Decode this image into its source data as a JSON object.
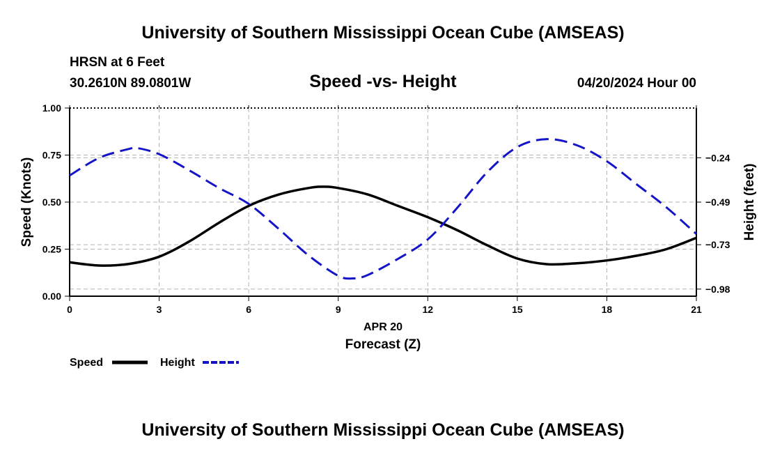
{
  "header": {
    "title": "University of Southern Mississippi Ocean Cube (AMSEAS)",
    "station": "HRSN at 6 Feet",
    "coords": "30.2610N  89.0801W",
    "chart_title": "Speed -vs- Height",
    "datetime": "04/20/2024 Hour 00"
  },
  "footer": {
    "title": "University of Southern Mississippi Ocean Cube (AMSEAS)"
  },
  "chart_data": {
    "type": "line",
    "title": "Speed -vs- Height",
    "xlabel": "Forecast (Z)",
    "xsublabel": "APR 20",
    "ylabel": "Speed (Knots)",
    "y2label": "Height (feet)",
    "xlim": [
      0,
      21
    ],
    "ylim": [
      0,
      1
    ],
    "y2lim": [
      -1.02,
      0.04
    ],
    "xticks": [
      "0",
      "3",
      "6",
      "9",
      "12",
      "15",
      "18",
      "21"
    ],
    "yticks": [
      "0.00",
      "0.25",
      "0.50",
      "0.75",
      "1.00"
    ],
    "y2ticks": [
      "-0.24",
      "-0.49",
      "-0.73",
      "-0.98"
    ],
    "grid": true,
    "legend_position": "bottom-left",
    "series": [
      {
        "name": "Speed",
        "axis": "left",
        "color": "#000000",
        "style": "solid",
        "x": [
          0,
          1,
          2,
          3,
          4,
          5,
          6,
          7,
          8,
          8.5,
          9,
          10,
          11,
          12,
          13,
          14,
          15,
          16,
          17,
          18,
          19,
          20,
          21
        ],
        "values": [
          0.18,
          0.163,
          0.172,
          0.21,
          0.29,
          0.39,
          0.48,
          0.54,
          0.575,
          0.582,
          0.575,
          0.54,
          0.48,
          0.42,
          0.35,
          0.27,
          0.2,
          0.17,
          0.175,
          0.19,
          0.215,
          0.25,
          0.31
        ]
      },
      {
        "name": "Height",
        "axis": "right",
        "color": "#1414c8",
        "style": "dashed",
        "x": [
          0,
          1,
          2,
          2.25,
          3,
          4,
          5,
          6,
          7,
          8,
          9,
          9.5,
          10,
          11,
          12,
          13,
          14,
          15,
          16,
          17,
          18,
          19,
          20,
          21
        ],
        "values": [
          -0.34,
          -0.24,
          -0.19,
          -0.185,
          -0.22,
          -0.31,
          -0.41,
          -0.5,
          -0.64,
          -0.79,
          -0.905,
          -0.92,
          -0.9,
          -0.81,
          -0.7,
          -0.52,
          -0.32,
          -0.18,
          -0.135,
          -0.17,
          -0.26,
          -0.39,
          -0.52,
          -0.67
        ]
      }
    ]
  }
}
